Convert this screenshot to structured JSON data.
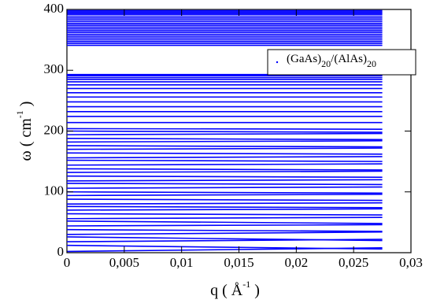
{
  "chart_data": {
    "type": "line",
    "xlabel": "q ( Å-1 )",
    "ylabel": "ω ( cm-1 )",
    "x": [
      0,
      0.0275
    ],
    "series": [
      {
        "name": "(GaAs)20/(AlAs)20",
        "color": "#0000ff",
        "branches": [
          [
            2,
            8
          ],
          [
            12,
            6
          ],
          [
            18,
            22
          ],
          [
            26,
            20
          ],
          [
            30,
            34
          ],
          [
            38,
            35
          ],
          [
            44,
            46
          ],
          [
            52,
            48
          ],
          [
            56,
            58
          ],
          [
            64,
            62
          ],
          [
            70,
            72
          ],
          [
            76,
            74
          ],
          [
            80,
            82
          ],
          [
            88,
            86
          ],
          [
            94,
            96
          ],
          [
            100,
            98
          ],
          [
            106,
            108
          ],
          [
            114,
            112
          ],
          [
            118,
            120
          ],
          [
            126,
            124
          ],
          [
            132,
            134
          ],
          [
            138,
            136
          ],
          [
            144,
            146
          ],
          [
            152,
            150
          ],
          [
            156,
            158
          ],
          [
            164,
            162
          ],
          [
            170,
            172
          ],
          [
            176,
            174
          ],
          [
            182,
            184
          ],
          [
            188,
            186
          ],
          [
            194,
            196
          ],
          [
            200,
            198
          ],
          [
            204,
            203
          ],
          [
            214,
            214
          ],
          [
            224,
            224
          ],
          [
            232,
            232
          ],
          [
            240,
            240
          ],
          [
            248,
            248
          ],
          [
            256,
            256
          ],
          [
            263,
            263
          ],
          [
            270,
            270
          ],
          [
            276,
            276
          ],
          [
            281,
            281
          ],
          [
            285,
            285
          ],
          [
            288,
            288
          ],
          [
            291,
            291
          ],
          [
            293,
            293
          ],
          [
            341,
            341
          ],
          [
            344,
            344
          ],
          [
            347,
            347
          ],
          [
            350,
            350
          ],
          [
            353,
            353
          ],
          [
            356,
            356
          ],
          [
            359,
            359
          ],
          [
            362,
            362
          ],
          [
            365,
            365
          ],
          [
            368,
            368
          ],
          [
            371,
            371
          ],
          [
            374,
            374
          ],
          [
            377,
            377
          ],
          [
            380,
            380
          ],
          [
            383,
            383
          ],
          [
            386,
            386
          ],
          [
            389,
            389
          ],
          [
            392,
            392
          ],
          [
            394,
            394
          ],
          [
            396,
            396
          ],
          [
            398,
            398
          ]
        ]
      }
    ],
    "xlim": [
      0,
      0.03
    ],
    "xticks": [
      0,
      {
        "value": 0.005,
        "label": "0,005"
      },
      {
        "value": 0.01,
        "label": "0,01"
      },
      {
        "value": 0.015,
        "label": "0,015"
      },
      {
        "value": 0.02,
        "label": "0,02"
      },
      {
        "value": 0.025,
        "label": "0,025"
      },
      {
        "value": 0.03,
        "label": "0,03"
      }
    ],
    "ylim": [
      0,
      400
    ],
    "yticks": [
      0,
      100,
      200,
      300,
      400
    ],
    "legend": "upper right"
  }
}
